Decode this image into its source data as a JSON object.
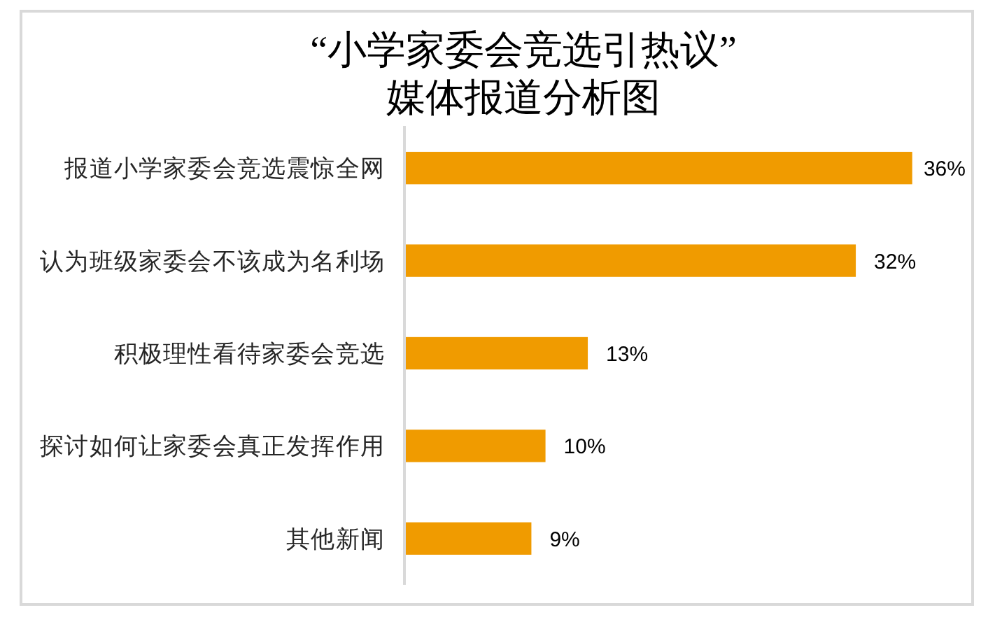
{
  "chart_data": {
    "type": "bar",
    "orientation": "horizontal",
    "title": "“小学家委会竞选引热议”\n媒体报道分析图",
    "categories": [
      "报道小学家委会竞选震惊全网",
      "认为班级家委会不该成为名利场",
      "积极理性看待家委会竞选",
      "探讨如何让家委会真正发挥作用",
      "其他新闻"
    ],
    "values": [
      36,
      32,
      13,
      10,
      9
    ],
    "color": "#f09b00",
    "value_labels": [
      "36%",
      "32%",
      "13%",
      "10%",
      "9%"
    ]
  }
}
